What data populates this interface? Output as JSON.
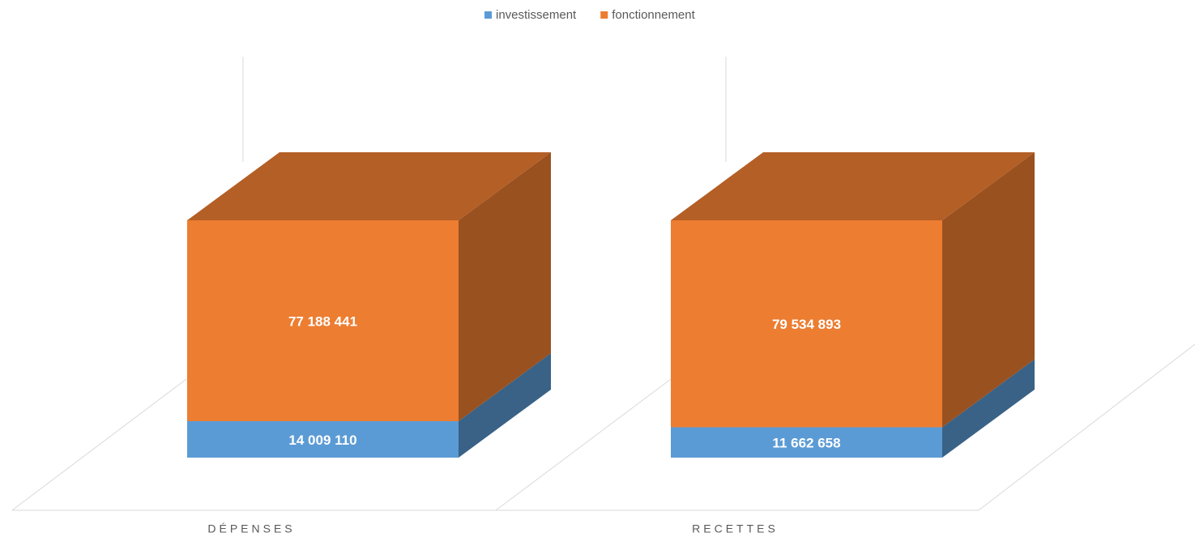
{
  "chart_data": {
    "type": "bar3d_stacked",
    "categories": [
      "DÉPENSES",
      "RECETTES"
    ],
    "series": [
      {
        "name": "investissement",
        "color": "#5b9bd5",
        "values": [
          14009110,
          11662658
        ],
        "value_labels": [
          "14 009 110",
          "11 662 658"
        ]
      },
      {
        "name": "fonctionnement",
        "color": "#ed7d31",
        "values": [
          77188441,
          79534893
        ],
        "value_labels": [
          "77 188 441",
          "79 534 893"
        ]
      }
    ],
    "legend": "top"
  }
}
